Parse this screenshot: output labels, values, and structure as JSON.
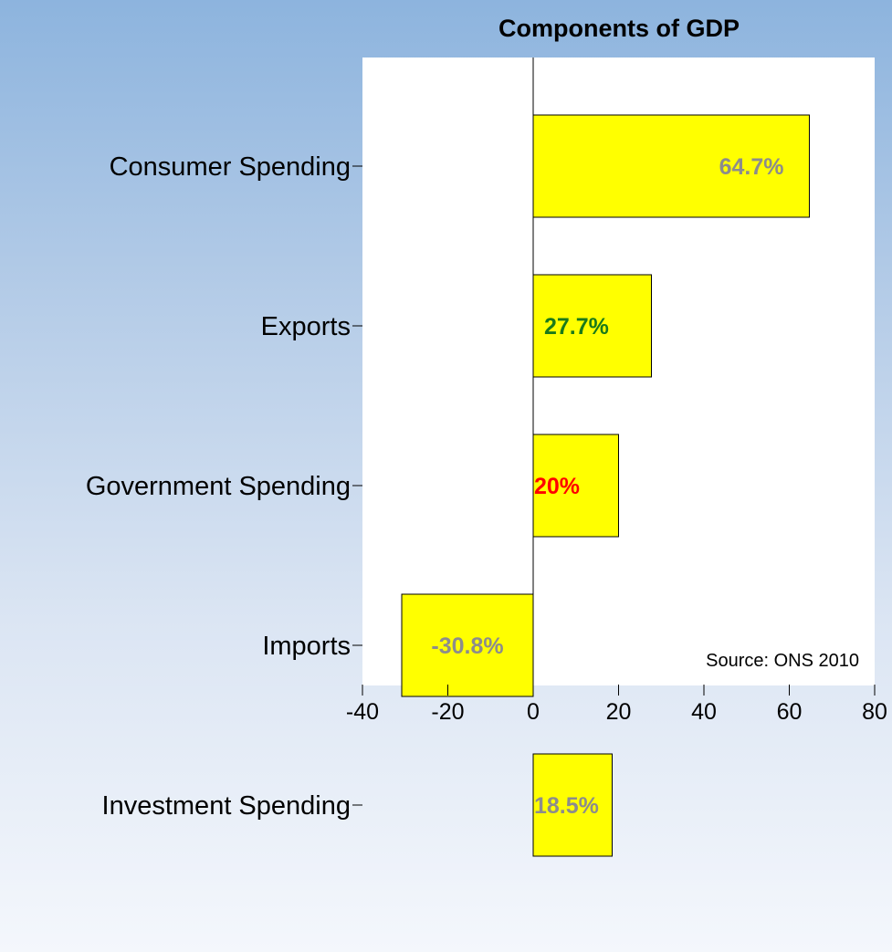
{
  "chart_data": {
    "type": "bar",
    "orientation": "horizontal",
    "title": "Components of GDP",
    "categories": [
      "Consumer Spending",
      "Exports",
      "Government Spending",
      "Imports",
      "Investment Spending"
    ],
    "values": [
      64.7,
      27.7,
      20,
      -30.8,
      18.5
    ],
    "data_labels": [
      "64.7%",
      "27.7%",
      "20%",
      "-30.8%",
      "18.5%"
    ],
    "data_label_colors": [
      "#8c8c8c",
      "#1a7a1a",
      "#ff0000",
      "#8c8c8c",
      "#8c8c8c"
    ],
    "bar_color": "#ffff00",
    "xlim": [
      -40,
      80
    ],
    "xticks": [
      -40,
      -20,
      0,
      20,
      40,
      60,
      80
    ],
    "xlabel": "",
    "ylabel": "",
    "grid": false,
    "source_note": "Source: ONS 2010"
  }
}
